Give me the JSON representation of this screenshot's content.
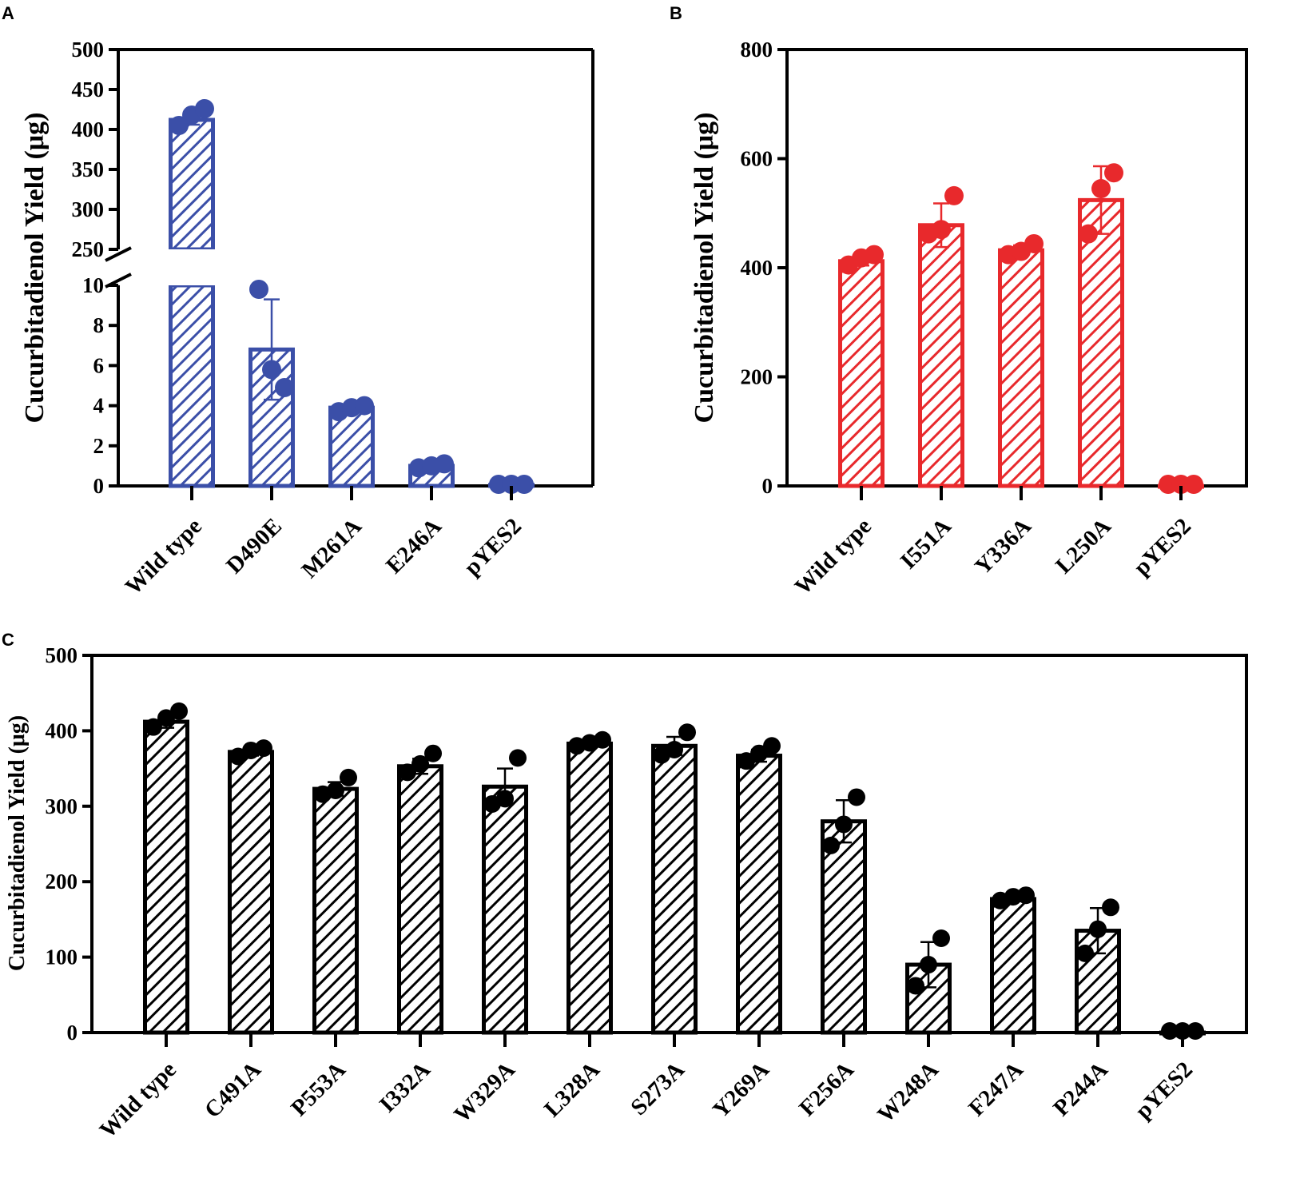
{
  "chart_data": [
    {
      "panel": "A",
      "type": "bar",
      "ylabel": "Cucurbitadienol Yield (μg)",
      "xlabel": "",
      "color": "#3b4fa8",
      "axis_break": true,
      "ylim_lower": [
        0,
        10
      ],
      "ylim_upper": [
        250,
        500
      ],
      "yticks_lower": [
        "0",
        "2",
        "4",
        "6",
        "8",
        "10"
      ],
      "yticks_upper": [
        "250",
        "300",
        "350",
        "400",
        "450",
        "500"
      ],
      "categories": [
        "Wild type",
        "D490E",
        "M261A",
        "E246A",
        "pYES2"
      ],
      "values": [
        412,
        6.8,
        3.9,
        1.0,
        0.05
      ],
      "errors": [
        6,
        2.5,
        0.15,
        0.1,
        0
      ],
      "points": [
        [
          405,
          418,
          426
        ],
        [
          9.8,
          5.8,
          4.9
        ],
        [
          3.7,
          3.9,
          4.0
        ],
        [
          0.9,
          1.0,
          1.1
        ],
        [
          0.05,
          0.05,
          0.05
        ]
      ]
    },
    {
      "panel": "B",
      "type": "bar",
      "ylabel": "Cucurbitadienol Yield (μg)",
      "xlabel": "",
      "color": "#e8292c",
      "ylim": [
        0,
        800
      ],
      "yticks": [
        "0",
        "200",
        "400",
        "600",
        "800"
      ],
      "categories": [
        "Wild type",
        "I551A",
        "Y336A",
        "L250A",
        "pYES2"
      ],
      "values": [
        412,
        478,
        432,
        524,
        0
      ],
      "errors": [
        8,
        40,
        9,
        62,
        0
      ],
      "points": [
        [
          405,
          418,
          424
        ],
        [
          462,
          470,
          532
        ],
        [
          424,
          430,
          444
        ],
        [
          462,
          545,
          574
        ],
        [
          0,
          0,
          0
        ]
      ]
    },
    {
      "panel": "C",
      "type": "bar",
      "ylabel": "Cucurbitadienol Yield (μg)",
      "xlabel": "",
      "color": "#000000",
      "ylim": [
        0,
        500
      ],
      "yticks": [
        "0",
        "100",
        "200",
        "300",
        "400",
        "500"
      ],
      "categories": [
        "Wild type",
        "C491A",
        "P553A",
        "I332A",
        "W329A",
        "L328A",
        "S273A",
        "Y269A",
        "F256A",
        "W248A",
        "F247A",
        "P244A",
        "pYES2"
      ],
      "values": [
        412,
        372,
        323,
        353,
        326,
        383,
        380,
        367,
        280,
        90,
        177,
        135,
        0
      ],
      "errors": [
        8,
        5,
        9,
        10,
        24,
        4,
        12,
        8,
        28,
        30,
        3,
        30,
        0
      ],
      "points": [
        [
          405,
          417,
          426
        ],
        [
          366,
          374,
          377
        ],
        [
          316,
          321,
          338
        ],
        [
          345,
          356,
          370
        ],
        [
          303,
          310,
          364
        ],
        [
          380,
          384,
          388
        ],
        [
          368,
          375,
          398
        ],
        [
          360,
          370,
          380
        ],
        [
          248,
          276,
          312
        ],
        [
          62,
          90,
          125
        ],
        [
          175,
          180,
          182
        ],
        [
          105,
          137,
          166
        ],
        [
          0,
          0,
          0
        ]
      ]
    }
  ]
}
